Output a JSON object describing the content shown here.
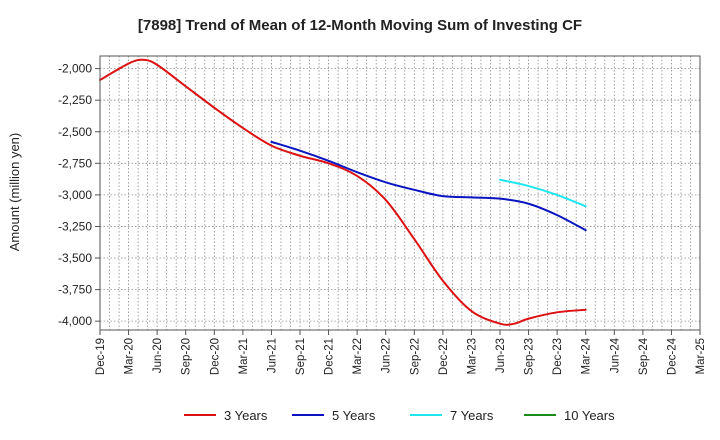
{
  "chart_data": {
    "type": "line",
    "title": "[7898]  Trend of Mean of 12-Month Moving Sum of Investing CF",
    "xlabel": "",
    "ylabel": "Amount (million yen)",
    "ylim": [
      -4070,
      -1900
    ],
    "yticks": [
      -2000,
      -2250,
      -2500,
      -2750,
      -3000,
      -3250,
      -3500,
      -3750,
      -4000
    ],
    "ytick_labels": [
      "-2,000",
      "-2,250",
      "-2,500",
      "-2,750",
      "-3,000",
      "-3,250",
      "-3,500",
      "-3,750",
      "-4,000"
    ],
    "categories": [
      "Dec-19",
      "Mar-20",
      "Jun-20",
      "Sep-20",
      "Dec-20",
      "Mar-21",
      "Jun-21",
      "Sep-21",
      "Dec-21",
      "Mar-22",
      "Jun-22",
      "Sep-22",
      "Dec-22",
      "Mar-23",
      "Jun-23",
      "Sep-23",
      "Dec-23",
      "Mar-24",
      "Jun-24",
      "Sep-24",
      "Dec-24",
      "Mar-25"
    ],
    "grid": true,
    "legend_position": "bottom",
    "series": [
      {
        "name": "3 Years",
        "color": "#dd1111",
        "x": [
          0,
          1,
          1.5,
          2,
          3,
          4,
          5,
          6,
          7,
          8,
          9,
          10,
          11,
          12,
          13,
          14,
          14.5,
          15,
          16,
          17
        ],
        "values": [
          -2090,
          -1960,
          -1930,
          -1970,
          -2140,
          -2310,
          -2470,
          -2610,
          -2690,
          -2750,
          -2850,
          -3040,
          -3350,
          -3680,
          -3920,
          -4020,
          -4020,
          -3980,
          -3930,
          -3910
        ]
      },
      {
        "name": "5 Years",
        "color": "#0a14c0",
        "x": [
          6,
          7,
          8,
          9,
          10,
          11,
          12,
          13,
          14,
          15,
          16,
          17
        ],
        "values": [
          -2580,
          -2650,
          -2730,
          -2820,
          -2900,
          -2960,
          -3010,
          -3020,
          -3030,
          -3070,
          -3160,
          -3280
        ]
      },
      {
        "name": "7 Years",
        "color": "#1ee5f0",
        "x": [
          14,
          15,
          16,
          17
        ],
        "values": [
          -2880,
          -2930,
          -3000,
          -3090
        ]
      },
      {
        "name": "10 Years",
        "color": "#1a8c1a",
        "x": [],
        "values": []
      }
    ]
  }
}
